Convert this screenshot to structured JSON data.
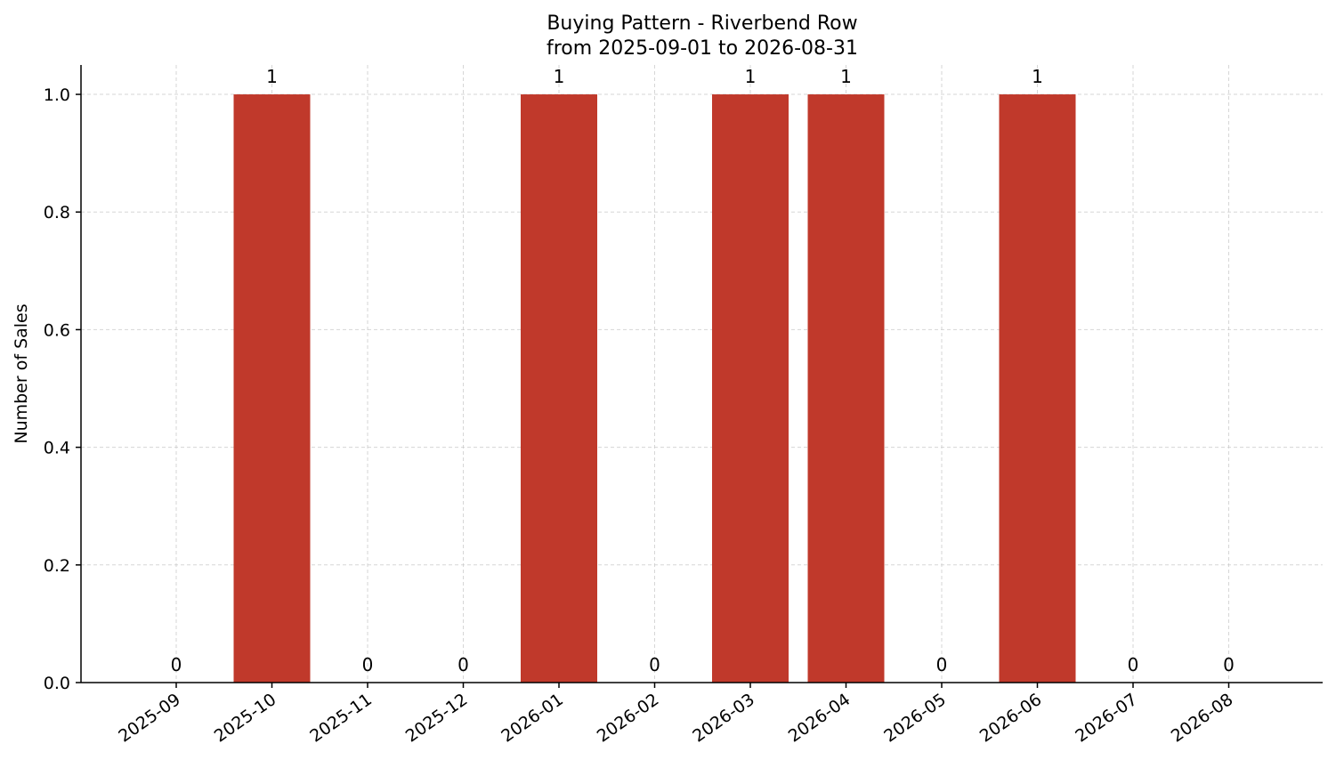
{
  "chart_data": {
    "type": "bar",
    "title": "Buying Pattern - Riverbend Row",
    "subtitle": "from 2025-09-01 to 2026-08-31",
    "xlabel": "",
    "ylabel": "Number of Sales",
    "categories": [
      "2025-09",
      "2025-10",
      "2025-11",
      "2025-12",
      "2026-01",
      "2026-02",
      "2026-03",
      "2026-04",
      "2026-05",
      "2026-06",
      "2026-07",
      "2026-08"
    ],
    "values": [
      0,
      1,
      0,
      0,
      1,
      0,
      1,
      1,
      0,
      1,
      0,
      0
    ],
    "data_labels": [
      "0",
      "1",
      "0",
      "0",
      "1",
      "0",
      "1",
      "1",
      "0",
      "1",
      "0",
      "0"
    ],
    "yticks": [
      0.0,
      0.2,
      0.4,
      0.6,
      0.8,
      1.0
    ],
    "ytick_labels": [
      "0.0",
      "0.2",
      "0.4",
      "0.6",
      "0.8",
      "1.0"
    ],
    "ylim": [
      0,
      1.05
    ],
    "grid": true,
    "bar_color": "#c0392b",
    "legend": null
  }
}
